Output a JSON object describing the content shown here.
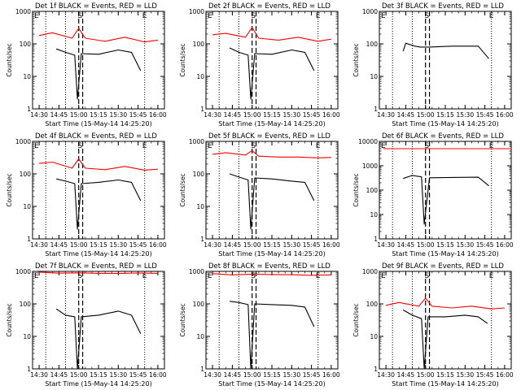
{
  "figure": {
    "xlabel": "Start Time (15-May-14 14:25:20)",
    "ylabel": "Counts/sec",
    "x_tick_labels": [
      "14:30",
      "14:45",
      "15:00",
      "15:15",
      "15:30",
      "15:45",
      "16:00"
    ],
    "y_tick_labels": [
      "1",
      "10",
      "100",
      "1000"
    ],
    "y_tick_labels_panel6": [
      "1",
      "10",
      "100",
      "1000",
      "10000"
    ],
    "marker_letters": [
      "E",
      "S",
      "E"
    ],
    "colors": {
      "events": "#000000",
      "lld": "#ff0000",
      "axes": "#000000"
    }
  },
  "chart_data": [
    {
      "type": "line",
      "title": "Det 1f BLACK = Events, RED = LLD",
      "xlabel": "Start Time (15-May-14 14:25:20)",
      "ylabel": "Counts/sec",
      "scale": "log",
      "ylim": [
        1,
        1000
      ],
      "series": [
        {
          "name": "Events",
          "color": "#000000",
          "x": [
            "14:43",
            "14:50",
            "14:57",
            "14:59",
            "15:02",
            "15:15",
            "15:30",
            "15:40",
            "15:47"
          ],
          "y": [
            70,
            55,
            45,
            2,
            50,
            48,
            65,
            55,
            15
          ]
        },
        {
          "name": "LLD",
          "color": "#ff0000",
          "x": [
            "14:30",
            "14:40",
            "14:55",
            "15:00",
            "15:05",
            "15:20",
            "15:35",
            "15:50",
            "16:00"
          ],
          "y": [
            180,
            220,
            150,
            300,
            150,
            120,
            160,
            115,
            130
          ]
        }
      ]
    },
    {
      "type": "line",
      "title": "Det 2f BLACK = Events, RED = LLD",
      "xlabel": "Start Time (15-May-14 14:25:20)",
      "ylabel": "Counts/sec",
      "scale": "log",
      "ylim": [
        1,
        1000
      ],
      "series": [
        {
          "name": "Events",
          "color": "#000000",
          "x": [
            "14:43",
            "14:50",
            "14:57",
            "14:59",
            "15:02",
            "15:15",
            "15:30",
            "15:40",
            "15:47"
          ],
          "y": [
            75,
            55,
            45,
            2,
            50,
            48,
            65,
            55,
            15
          ]
        },
        {
          "name": "LLD",
          "color": "#ff0000",
          "x": [
            "14:30",
            "14:40",
            "14:55",
            "15:00",
            "15:05",
            "15:20",
            "15:35",
            "15:50",
            "16:00"
          ],
          "y": [
            190,
            210,
            160,
            320,
            150,
            130,
            160,
            120,
            140
          ]
        }
      ]
    },
    {
      "type": "line",
      "title": "Det 3f BLACK = Events, RED = LLD",
      "xlabel": "Start Time (15-May-14 14:25:20)",
      "ylabel": "Counts/sec",
      "scale": "log",
      "ylim": [
        1,
        1000
      ],
      "series": [
        {
          "name": "Events",
          "color": "#000000",
          "x": [
            "14:43",
            "14:45",
            "14:52",
            "14:56",
            "15:03",
            "15:20",
            "15:40",
            "15:48"
          ],
          "y": [
            60,
            105,
            85,
            80,
            80,
            85,
            85,
            35
          ]
        }
      ]
    },
    {
      "type": "line",
      "title": "Det 4f BLACK = Events, RED = LLD",
      "xlabel": "Start Time (15-May-14 14:25:20)",
      "ylabel": "Counts/sec",
      "scale": "log",
      "ylim": [
        1,
        1000
      ],
      "series": [
        {
          "name": "Events",
          "color": "#000000",
          "x": [
            "14:43",
            "14:50",
            "14:57",
            "14:59",
            "15:02",
            "15:15",
            "15:30",
            "15:40",
            "15:47"
          ],
          "y": [
            70,
            60,
            50,
            2,
            50,
            55,
            65,
            55,
            15
          ]
        },
        {
          "name": "LLD",
          "color": "#ff0000",
          "x": [
            "14:30",
            "14:40",
            "14:55",
            "15:00",
            "15:05",
            "15:20",
            "15:35",
            "15:50",
            "16:00"
          ],
          "y": [
            210,
            230,
            150,
            290,
            150,
            135,
            170,
            130,
            140
          ]
        }
      ]
    },
    {
      "type": "line",
      "title": "Det 5f BLACK = Events, RED = LLD",
      "xlabel": "Start Time (15-May-14 14:25:20)",
      "ylabel": "Counts/sec",
      "scale": "log",
      "ylim": [
        1,
        1000
      ],
      "series": [
        {
          "name": "Events",
          "color": "#000000",
          "x": [
            "14:43",
            "14:50",
            "14:57",
            "14:59",
            "15:02",
            "15:15",
            "15:30",
            "15:40",
            "15:47"
          ],
          "y": [
            100,
            80,
            65,
            2,
            75,
            70,
            60,
            55,
            15
          ]
        },
        {
          "name": "LLD",
          "color": "#ff0000",
          "x": [
            "14:30",
            "14:40",
            "14:55",
            "15:00",
            "15:05",
            "15:20",
            "15:35",
            "15:50",
            "16:00"
          ],
          "y": [
            400,
            450,
            380,
            520,
            350,
            330,
            330,
            310,
            320
          ]
        }
      ]
    },
    {
      "type": "line",
      "title": "Det 6f BLACK = Events, RED = LLD",
      "xlabel": "Start Time (15-May-14 14:25:20)",
      "ylabel": "Counts/sec",
      "scale": "log",
      "ylim": [
        1,
        10000
      ],
      "series": [
        {
          "name": "Events",
          "color": "#000000",
          "x": [
            "14:43",
            "14:50",
            "14:57",
            "14:59",
            "15:03",
            "15:20",
            "15:40",
            "15:48"
          ],
          "y": [
            300,
            400,
            350,
            4,
            320,
            330,
            340,
            150
          ]
        },
        {
          "name": "LLD",
          "color": "#ff0000",
          "x": [
            "14:28",
            "16:05"
          ],
          "y": [
            5000,
            5000
          ]
        }
      ]
    },
    {
      "type": "line",
      "title": "Det 7f BLACK = Events, RED = LLD",
      "xlabel": "Start Time (15-May-14 14:25:20)",
      "ylabel": "Counts/sec",
      "scale": "log",
      "ylim": [
        1,
        1000
      ],
      "series": [
        {
          "name": "Events",
          "color": "#000000",
          "x": [
            "14:43",
            "14:50",
            "14:57",
            "14:59",
            "15:02",
            "15:15",
            "15:30",
            "15:40",
            "15:47"
          ],
          "y": [
            70,
            45,
            40,
            1,
            40,
            45,
            60,
            45,
            12
          ]
        },
        {
          "name": "LLD",
          "color": "#ff0000",
          "x": [
            "14:30",
            "14:45",
            "15:00",
            "15:15",
            "15:30",
            "15:45",
            "16:00"
          ],
          "y": [
            950,
            880,
            900,
            870,
            860,
            890,
            870
          ]
        }
      ]
    },
    {
      "type": "line",
      "title": "Det 8f BLACK = Events, RED = LLD",
      "xlabel": "Start Time (15-May-14 14:25:20)",
      "ylabel": "Counts/sec",
      "scale": "log",
      "ylim": [
        1,
        1000
      ],
      "series": [
        {
          "name": "Events",
          "color": "#000000",
          "x": [
            "14:43",
            "14:50",
            "14:57",
            "14:59",
            "15:02",
            "15:15",
            "15:30",
            "15:40",
            "15:47"
          ],
          "y": [
            120,
            110,
            95,
            1,
            100,
            95,
            90,
            80,
            20
          ]
        },
        {
          "name": "LLD",
          "color": "#ff0000",
          "x": [
            "14:30",
            "14:45",
            "15:00",
            "15:15",
            "15:30",
            "15:45",
            "16:00"
          ],
          "y": [
            850,
            780,
            820,
            800,
            790,
            760,
            780
          ]
        }
      ]
    },
    {
      "type": "line",
      "title": "Det 9f BLACK = Events, RED = LLD",
      "xlabel": "Start Time (15-May-14 14:25:20)",
      "ylabel": "Counts/sec",
      "scale": "log",
      "ylim": [
        1,
        1000
      ],
      "series": [
        {
          "name": "Events",
          "color": "#000000",
          "x": [
            "14:43",
            "14:50",
            "14:57",
            "14:59",
            "15:02",
            "15:15",
            "15:30",
            "15:40",
            "15:47"
          ],
          "y": [
            65,
            45,
            35,
            1,
            40,
            40,
            45,
            40,
            25
          ]
        },
        {
          "name": "LLD",
          "color": "#ff0000",
          "x": [
            "14:30",
            "14:40",
            "14:55",
            "15:00",
            "15:05",
            "15:20",
            "15:35",
            "15:50",
            "16:00"
          ],
          "y": [
            90,
            110,
            85,
            150,
            85,
            75,
            85,
            70,
            75
          ]
        }
      ]
    }
  ]
}
